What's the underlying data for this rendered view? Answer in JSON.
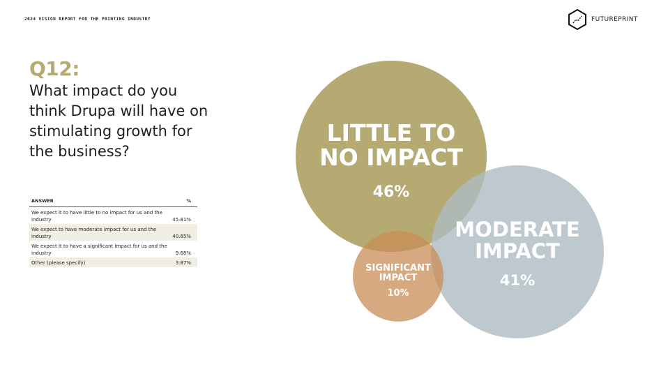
{
  "header": {
    "report_title": "2024 VISION REPORT FOR THE PRINTING INDUSTRY",
    "brand": "FUTUREPRINT",
    "logo_icon": "futureprint-hexagon-icon"
  },
  "question": {
    "number": "Q12:",
    "text": "What impact do you think Drupa will have on stimulating growth for the business?"
  },
  "table": {
    "col_answer": "ANSWER",
    "col_pct": "%",
    "rows": [
      {
        "answer": "We expect it to have little to no impact for us and the industry",
        "pct": "45.81%"
      },
      {
        "answer": "We expect to have moderate impact for us and the industry",
        "pct": "40.65%"
      },
      {
        "answer": "We expect it to have a significant impact for us and the industry",
        "pct": "9.68%"
      },
      {
        "answer": "Other (please specify)",
        "pct": "3.87%"
      }
    ]
  },
  "chart_data": {
    "type": "bubble",
    "title": "",
    "series": [
      {
        "name": "LITTLE TO NO IMPACT",
        "label_lines": [
          "LITTLE TO",
          "NO IMPACT"
        ],
        "value": 46,
        "value_label": "46%",
        "color": "#b5aa72",
        "opacity": 1
      },
      {
        "name": "MODERATE IMPACT",
        "label_lines": [
          "MODERATE",
          "IMPACT"
        ],
        "value": 41,
        "value_label": "41%",
        "color": "#aebbc3",
        "opacity": 0.8
      },
      {
        "name": "SIGNIFICANT IMPACT",
        "label_lines": [
          "SIGNIFICANT",
          "IMPACT"
        ],
        "value": 10,
        "value_label": "10%",
        "color": "#c98c55",
        "opacity": 0.75
      }
    ]
  }
}
